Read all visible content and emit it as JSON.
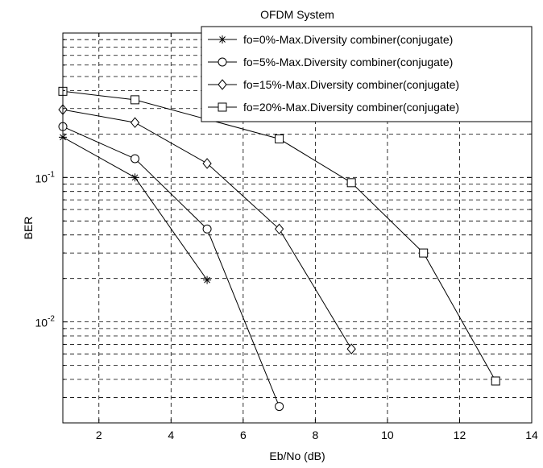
{
  "chart_data": {
    "type": "line",
    "title": "OFDM System",
    "xlabel": "Eb/No (dB)",
    "ylabel": "BER",
    "xlim": [
      1,
      14
    ],
    "ylim": [
      0.002,
      1
    ],
    "yscale": "log",
    "grid": true,
    "legend_position": "top-right",
    "x_ticks": [
      "2",
      "4",
      "6",
      "8",
      "10",
      "12",
      "14"
    ],
    "y_ticks": [
      {
        "base": "10",
        "exp": "-1",
        "value": 0.1
      },
      {
        "base": "10",
        "exp": "-2",
        "value": 0.01
      }
    ],
    "series": [
      {
        "name": "fo=0%-Max.Diversity combiner(conjugate)",
        "marker": "star",
        "x": [
          1,
          3,
          5
        ],
        "y": [
          0.19,
          0.1,
          0.0195
        ]
      },
      {
        "name": "fo=5%-Max.Diversity combiner(conjugate)",
        "marker": "circle",
        "x": [
          1,
          3,
          5,
          7
        ],
        "y": [
          0.225,
          0.135,
          0.044,
          0.0026
        ]
      },
      {
        "name": "fo=15%-Max.Diversity combiner(conjugate)",
        "marker": "diamond",
        "x": [
          1,
          3,
          5,
          7,
          9
        ],
        "y": [
          0.295,
          0.24,
          0.125,
          0.044,
          0.0065
        ]
      },
      {
        "name": "fo=20%-Max.Diversity combiner(conjugate)",
        "marker": "square",
        "x": [
          1,
          3,
          7,
          9,
          11,
          13
        ],
        "y": [
          0.395,
          0.345,
          0.185,
          0.092,
          0.03,
          0.0039
        ]
      }
    ]
  }
}
